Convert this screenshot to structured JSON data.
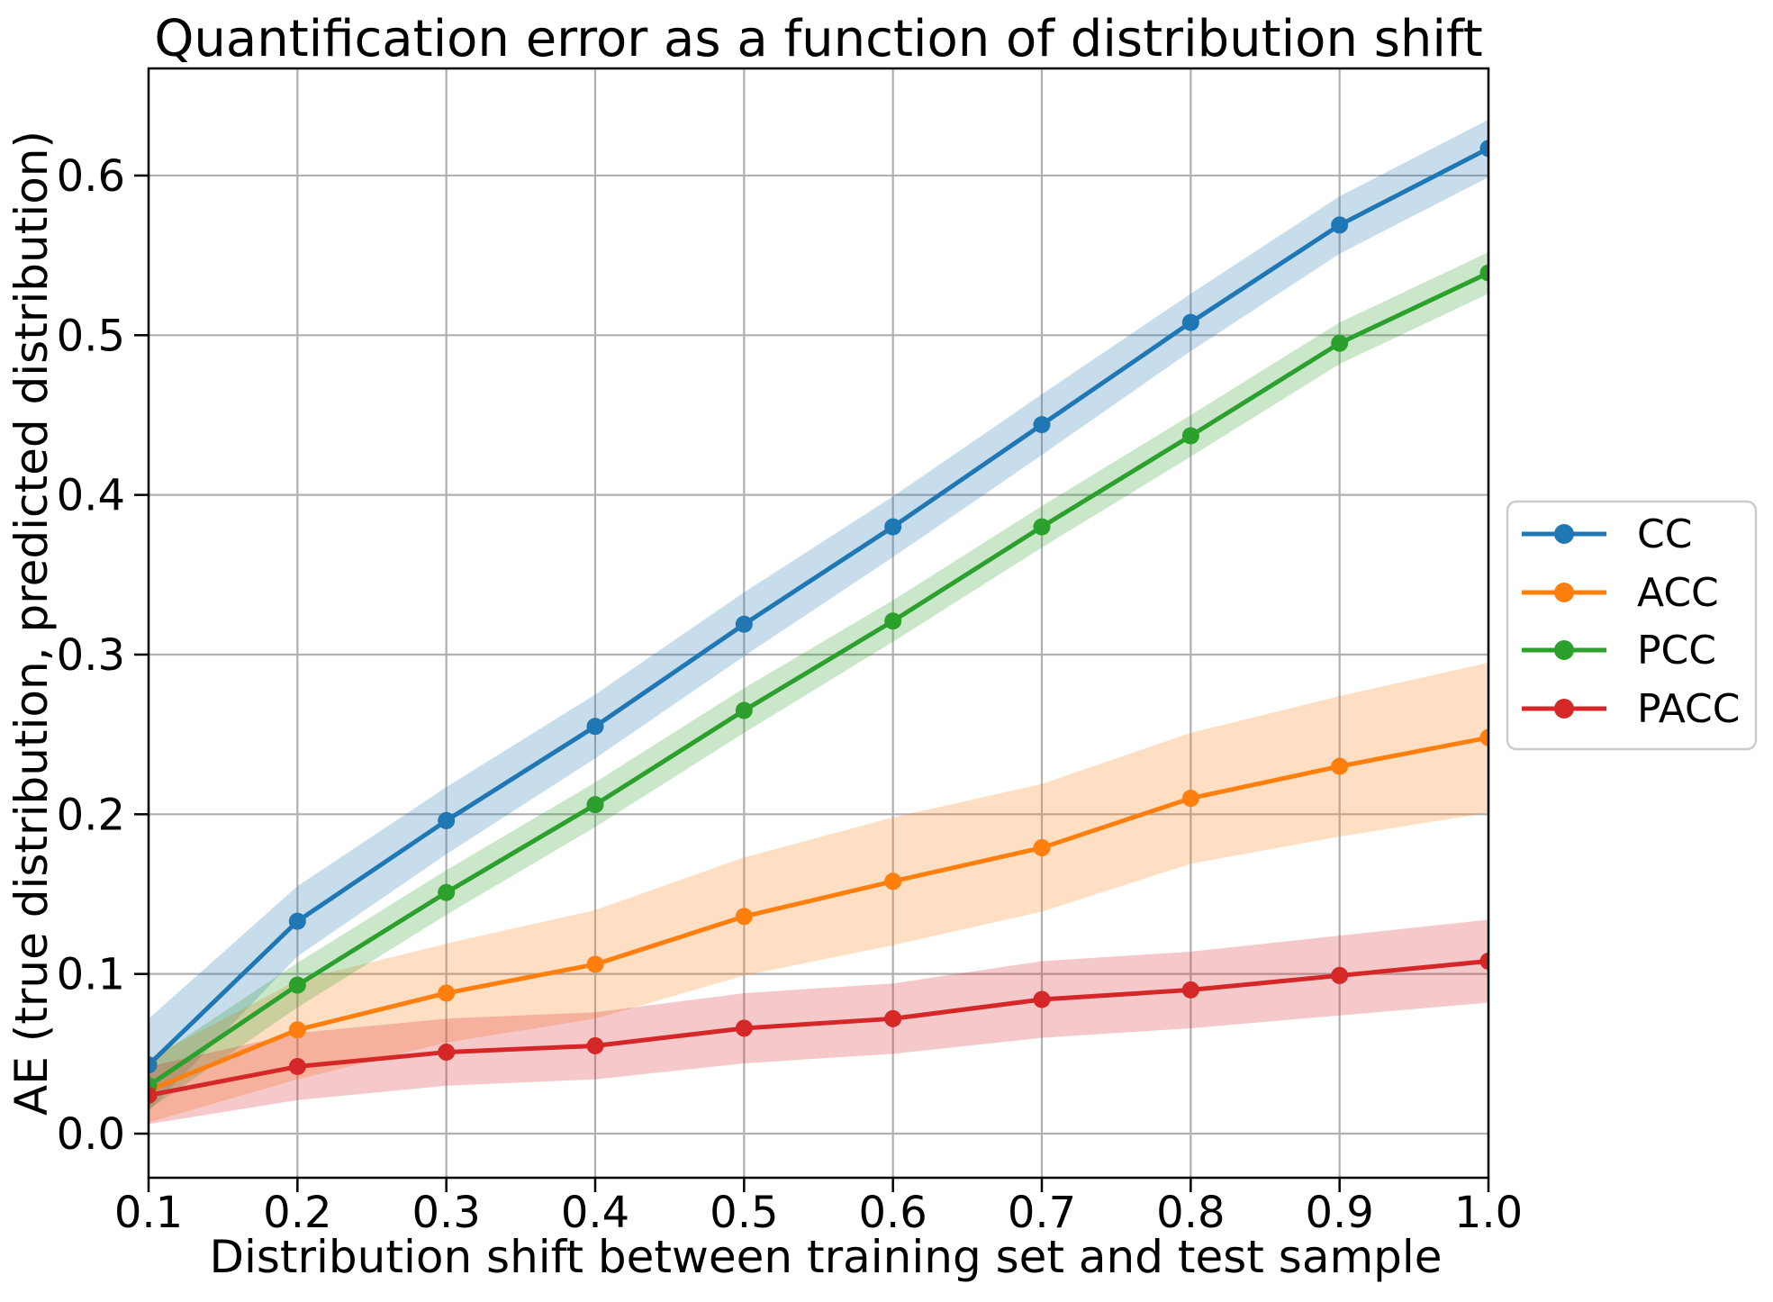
{
  "chart_data": {
    "type": "line",
    "title": "Quantification error as a function of distribution shift",
    "xlabel": "Distribution shift between training set and test sample",
    "ylabel": "AE (true distribution, predicted distribution)",
    "x": [
      0.1,
      0.2,
      0.3,
      0.4,
      0.5,
      0.6,
      0.7,
      0.8,
      0.9,
      1.0
    ],
    "xlim": [
      0.1,
      1.0
    ],
    "ylim": [
      -0.028,
      0.667
    ],
    "grid": true,
    "legend_position": "outside-right",
    "band_opacity": 0.25,
    "xticks": {
      "values": [
        0.1,
        0.2,
        0.3,
        0.4,
        0.5,
        0.6,
        0.7,
        0.8,
        0.9,
        1.0
      ],
      "labels": [
        "0.1",
        "0.2",
        "0.3",
        "0.4",
        "0.5",
        "0.6",
        "0.7",
        "0.8",
        "0.9",
        "1.0"
      ]
    },
    "yticks": {
      "values": [
        0.0,
        0.1,
        0.2,
        0.3,
        0.4,
        0.5,
        0.6
      ],
      "labels": [
        "0.0",
        "0.1",
        "0.2",
        "0.3",
        "0.4",
        "0.5",
        "0.6"
      ]
    },
    "series": [
      {
        "name": "CC",
        "color": "#1f77b4",
        "marker": "circle",
        "values": [
          0.043,
          0.133,
          0.196,
          0.255,
          0.319,
          0.38,
          0.444,
          0.508,
          0.569,
          0.617
        ],
        "band_halfwidth": [
          0.029,
          0.022,
          0.021,
          0.02,
          0.02,
          0.019,
          0.019,
          0.018,
          0.018,
          0.018
        ]
      },
      {
        "name": "ACC",
        "color": "#ff7f0e",
        "marker": "circle",
        "values": [
          0.027,
          0.065,
          0.088,
          0.106,
          0.136,
          0.158,
          0.179,
          0.21,
          0.23,
          0.248
        ],
        "band_halfwidth": [
          0.02,
          0.031,
          0.031,
          0.034,
          0.037,
          0.04,
          0.04,
          0.041,
          0.044,
          0.047
        ]
      },
      {
        "name": "PCC",
        "color": "#2ca02c",
        "marker": "circle",
        "values": [
          0.03,
          0.093,
          0.151,
          0.206,
          0.265,
          0.321,
          0.38,
          0.437,
          0.495,
          0.539
        ],
        "band_halfwidth": [
          0.015,
          0.014,
          0.014,
          0.014,
          0.014,
          0.013,
          0.013,
          0.013,
          0.013,
          0.013
        ]
      },
      {
        "name": "PACC",
        "color": "#d62728",
        "marker": "circle",
        "values": [
          0.024,
          0.042,
          0.051,
          0.055,
          0.066,
          0.072,
          0.084,
          0.09,
          0.099,
          0.108
        ],
        "band_halfwidth": [
          0.018,
          0.021,
          0.021,
          0.021,
          0.022,
          0.022,
          0.024,
          0.024,
          0.025,
          0.026
        ]
      }
    ]
  }
}
